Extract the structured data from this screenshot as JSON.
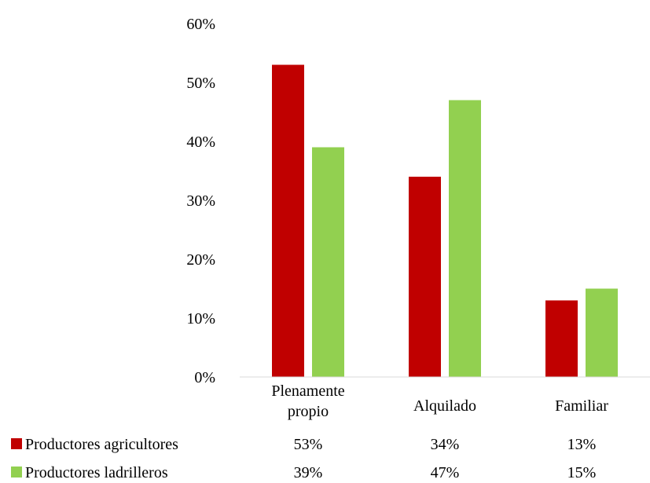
{
  "chart_data": {
    "type": "bar",
    "categories": [
      "Plenamente\npropio",
      "Alquilado",
      "Familiar"
    ],
    "series": [
      {
        "name": "Productores agricultores",
        "values": [
          53,
          34,
          13
        ],
        "color": "#C00000",
        "labels": [
          "53%",
          "34%",
          "13%"
        ]
      },
      {
        "name": "Productores ladrilleros",
        "values": [
          39,
          47,
          15
        ],
        "color": "#92D050",
        "labels": [
          "39%",
          "47%",
          "15%"
        ]
      }
    ],
    "y_ticks": [
      "0%",
      "10%",
      "20%",
      "30%",
      "40%",
      "50%",
      "60%"
    ],
    "ylim": [
      0,
      60
    ],
    "grid": false,
    "legend": "data-table-left",
    "title": "",
    "xlabel": "",
    "ylabel": ""
  }
}
